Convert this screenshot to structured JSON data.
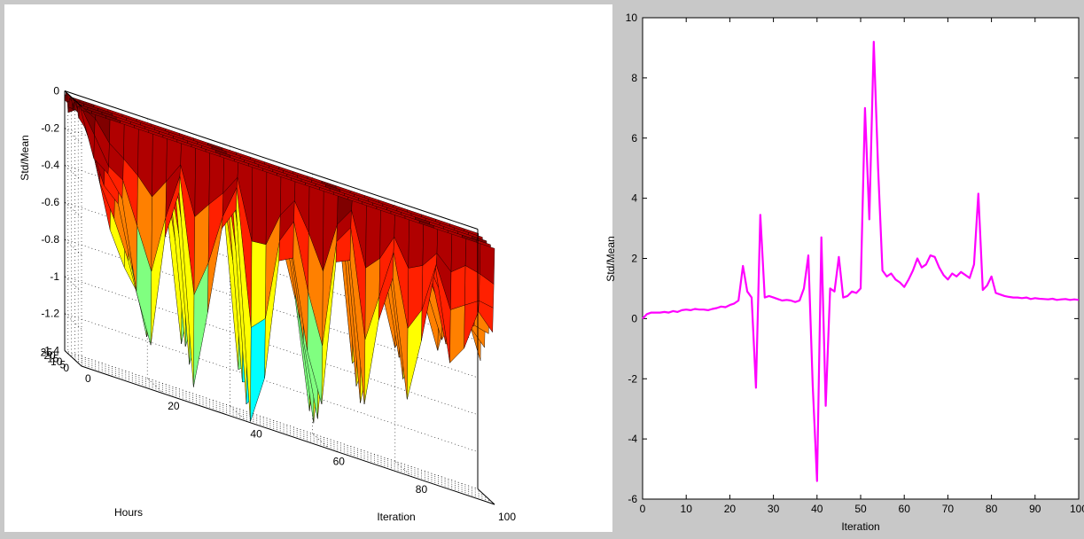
{
  "chart_data": [
    {
      "type": "surface",
      "ylabel": "Hours",
      "xlabel": "Iteration",
      "zlabel": "Std/Mean",
      "xlim": [
        0,
        100
      ],
      "ylim": [
        0,
        25
      ],
      "zlim": [
        -1.4,
        0
      ],
      "x_ticks": [
        "0",
        "20",
        "40",
        "60",
        "80",
        "100"
      ],
      "y_ticks": [
        "0",
        "5",
        "10",
        "15",
        "20",
        "25"
      ],
      "z_ticks": [
        "-1.4",
        "-1.2",
        "-1",
        "-0.8",
        "-0.6",
        "-0.4",
        "-0.2",
        "0"
      ],
      "grid": true,
      "colormap": [
        "#00008f",
        "#0050ff",
        "#00ffff",
        "#80ff80",
        "#ffff00",
        "#ff8000",
        "#ff2000",
        "#b00000",
        "#800000"
      ],
      "ridge_hours": [
        0,
        6,
        12,
        18,
        24
      ],
      "surface_values_by_iteration": [
        -0.05,
        -0.15,
        -0.3,
        -0.55,
        -0.9,
        -1.05,
        -0.6,
        -0.4,
        -1.25,
        -0.8,
        -0.5,
        -0.35,
        -1.3,
        -1.1,
        -0.6,
        -0.45,
        -0.8,
        -1.2,
        -0.5,
        -0.3,
        -1.0,
        -0.7,
        -0.45,
        -0.9,
        -0.6,
        -0.35,
        -0.75,
        -0.5,
        -0.4,
        -0.6
      ]
    },
    {
      "type": "line",
      "xlabel": "Iteration",
      "ylabel": "Std/Mean",
      "xlim": [
        0,
        100
      ],
      "ylim": [
        -6,
        10
      ],
      "x_ticks": [
        "0",
        "10",
        "20",
        "30",
        "40",
        "50",
        "60",
        "70",
        "80",
        "90",
        "100"
      ],
      "y_ticks": [
        "-6",
        "-4",
        "-2",
        "0",
        "2",
        "4",
        "6",
        "8",
        "10"
      ],
      "grid": false,
      "line_color": "#ff00ff",
      "x": [
        0,
        1,
        2,
        3,
        4,
        5,
        6,
        7,
        8,
        9,
        10,
        11,
        12,
        13,
        14,
        15,
        16,
        17,
        18,
        19,
        20,
        21,
        22,
        23,
        24,
        25,
        26,
        27,
        28,
        29,
        30,
        31,
        32,
        33,
        34,
        35,
        36,
        37,
        38,
        39,
        40,
        41,
        42,
        43,
        44,
        45,
        46,
        47,
        48,
        49,
        50,
        51,
        52,
        53,
        54,
        55,
        56,
        57,
        58,
        59,
        60,
        61,
        62,
        63,
        64,
        65,
        66,
        67,
        68,
        69,
        70,
        71,
        72,
        73,
        74,
        75,
        76,
        77,
        78,
        79,
        80,
        81,
        82,
        83,
        84,
        85,
        86,
        87,
        88,
        89,
        90,
        91,
        92,
        93,
        94,
        95,
        96,
        97,
        98,
        99,
        100
      ],
      "y": [
        0.0,
        0.15,
        0.2,
        0.2,
        0.2,
        0.22,
        0.2,
        0.25,
        0.22,
        0.28,
        0.3,
        0.28,
        0.32,
        0.3,
        0.3,
        0.28,
        0.32,
        0.35,
        0.4,
        0.38,
        0.45,
        0.5,
        0.6,
        1.75,
        0.9,
        0.7,
        -2.3,
        3.45,
        0.7,
        0.75,
        0.7,
        0.65,
        0.6,
        0.62,
        0.6,
        0.55,
        0.6,
        1.0,
        2.1,
        -2.2,
        -5.4,
        2.7,
        -2.9,
        1.0,
        0.9,
        2.05,
        0.7,
        0.75,
        0.9,
        0.85,
        1.0,
        7.0,
        3.3,
        9.2,
        5.0,
        1.6,
        1.4,
        1.5,
        1.3,
        1.2,
        1.05,
        1.3,
        1.6,
        2.0,
        1.7,
        1.8,
        2.1,
        2.05,
        1.7,
        1.45,
        1.3,
        1.5,
        1.4,
        1.55,
        1.45,
        1.35,
        1.8,
        4.15,
        0.95,
        1.1,
        1.4,
        0.85,
        0.8,
        0.75,
        0.72,
        0.7,
        0.7,
        0.68,
        0.7,
        0.65,
        0.68,
        0.66,
        0.65,
        0.64,
        0.66,
        0.62,
        0.64,
        0.65,
        0.62,
        0.64,
        0.62
      ]
    }
  ]
}
